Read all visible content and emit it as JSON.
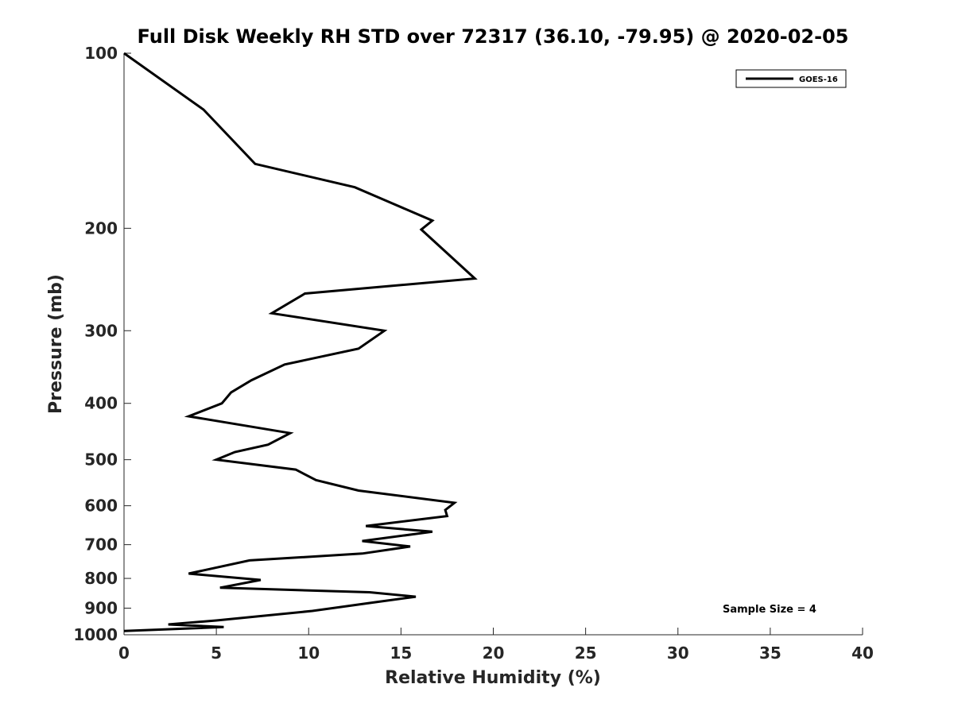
{
  "chart_data": {
    "type": "line",
    "title": "Full Disk Weekly RH STD over 72317 (36.10, -79.95) @ 2020-02-05",
    "xlabel": "Relative Humidity (%)",
    "ylabel": "Pressure (mb)",
    "xlim": [
      0,
      40
    ],
    "ylim": [
      1000,
      100
    ],
    "y_scale": "log",
    "y_reversed": true,
    "grid": false,
    "legend_position": "top-right",
    "x_ticks": [
      "0",
      "5",
      "10",
      "15",
      "20",
      "25",
      "30",
      "35",
      "40"
    ],
    "y_ticks": [
      "100",
      "200",
      "300",
      "400",
      "500",
      "600",
      "700",
      "800",
      "900",
      "1000"
    ],
    "series": [
      {
        "name": "GOES-16",
        "color": "#000000",
        "points": [
          [
            0.0,
            100
          ],
          [
            4.3,
            125
          ],
          [
            7.1,
            155
          ],
          [
            12.5,
            170
          ],
          [
            16.7,
            194
          ],
          [
            16.1,
            201
          ],
          [
            19.0,
            244
          ],
          [
            9.8,
            259
          ],
          [
            8.0,
            280
          ],
          [
            14.1,
            300
          ],
          [
            12.7,
            322
          ],
          [
            8.7,
            343
          ],
          [
            6.9,
            365
          ],
          [
            5.8,
            383
          ],
          [
            5.3,
            400
          ],
          [
            3.5,
            421
          ],
          [
            9.0,
            450
          ],
          [
            7.8,
            471
          ],
          [
            6.0,
            485
          ],
          [
            5.0,
            500
          ],
          [
            9.3,
            520
          ],
          [
            10.4,
            542
          ],
          [
            12.7,
            565
          ],
          [
            17.9,
            593
          ],
          [
            17.4,
            610
          ],
          [
            17.5,
            625
          ],
          [
            13.1,
            650
          ],
          [
            16.7,
            665
          ],
          [
            12.9,
            690
          ],
          [
            15.5,
            705
          ],
          [
            12.9,
            725
          ],
          [
            6.8,
            745
          ],
          [
            3.5,
            785
          ],
          [
            7.4,
            805
          ],
          [
            5.2,
            830
          ],
          [
            13.3,
            845
          ],
          [
            15.8,
            860
          ],
          [
            13.5,
            880
          ],
          [
            10.2,
            910
          ],
          [
            5.0,
            945
          ],
          [
            2.4,
            960
          ],
          [
            5.4,
            970
          ],
          [
            0.0,
            985
          ]
        ]
      }
    ],
    "annotation": "Sample Size = 4"
  }
}
